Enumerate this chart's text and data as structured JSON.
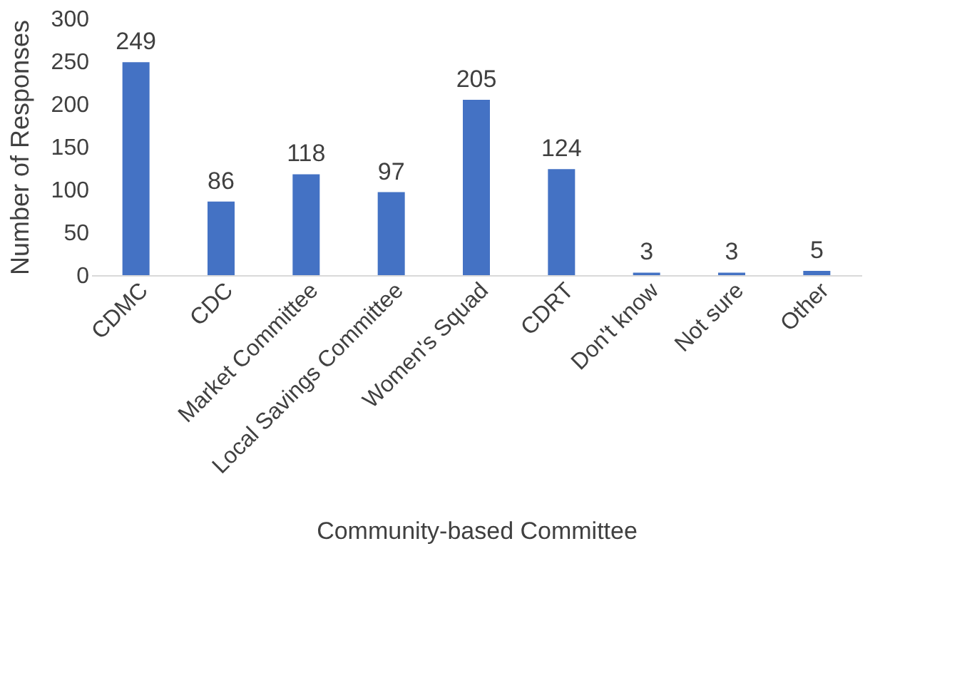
{
  "chart_data": {
    "type": "bar",
    "xlabel": "Community-based Committee",
    "ylabel": "Number of Responses",
    "categories": [
      "CDMC",
      "CDC",
      "Market Committee",
      "Local Savings Committee",
      "Women's Squad",
      "CDRT",
      "Don't know",
      "Not sure",
      "Other"
    ],
    "values": [
      249,
      86,
      118,
      97,
      205,
      124,
      3,
      3,
      5
    ],
    "color": "#4472c4",
    "ylim": [
      0,
      300
    ],
    "yticks": [
      0,
      50,
      100,
      150,
      200,
      250,
      300
    ],
    "grid": false,
    "data_labels": true
  }
}
